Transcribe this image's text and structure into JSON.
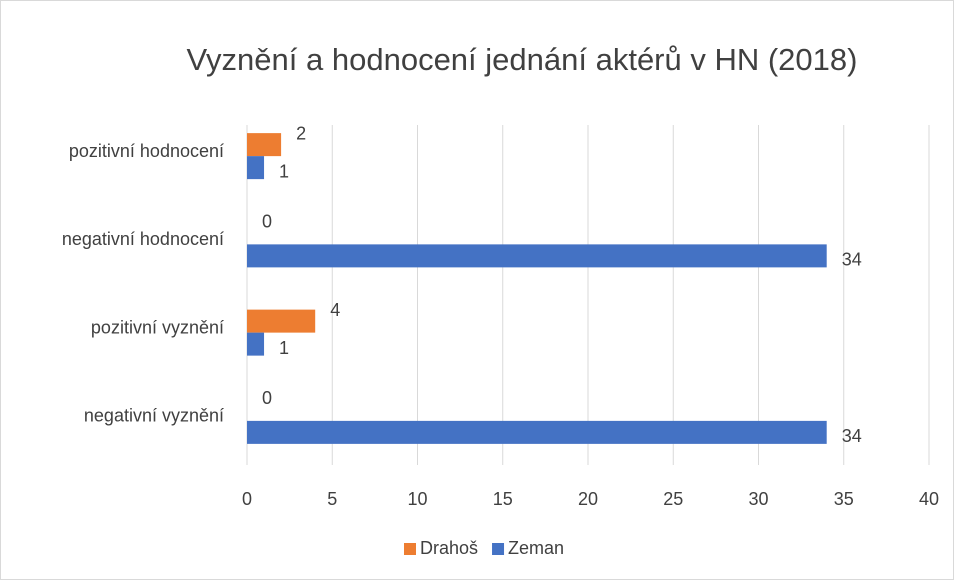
{
  "chart_data": {
    "type": "hbar",
    "title": "Vyznění a hodnocení jednání aktérů v HN (2018)",
    "categories": [
      "pozitivní hodnocení",
      "negativní hodnocení",
      "pozitivní vyznění",
      "negativní vyznění"
    ],
    "series": [
      {
        "name": "Drahoš",
        "color": "#ed7d31",
        "values": [
          2,
          0,
          4,
          0
        ]
      },
      {
        "name": "Zeman",
        "color": "#4472c4",
        "values": [
          1,
          34,
          1,
          34
        ]
      }
    ],
    "xlim": [
      0,
      40
    ],
    "xticks": [
      0,
      5,
      10,
      15,
      20,
      25,
      30,
      35,
      40
    ],
    "grid": true,
    "legend": "bottom"
  }
}
